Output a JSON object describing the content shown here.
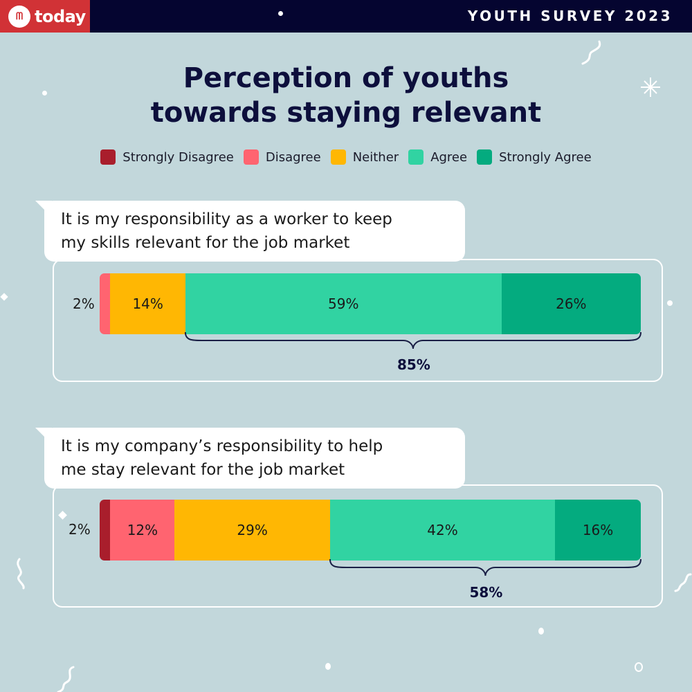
{
  "header": {
    "logo_text": "today",
    "survey_label": "YOUTH SURVEY 2023"
  },
  "chart_data": {
    "type": "bar",
    "orientation": "horizontal-stacked-100",
    "title": "Perception of youths towards staying relevant",
    "title_lines": [
      "Perception of youths",
      "towards staying relevant"
    ],
    "legend": [
      {
        "name": "Strongly Disagree",
        "color": "#a91e2c"
      },
      {
        "name": "Disagree",
        "color": "#ff6470"
      },
      {
        "name": "Neither",
        "color": "#ffb703"
      },
      {
        "name": "Agree",
        "color": "#31d3a2"
      },
      {
        "name": "Strongly Agree",
        "color": "#04ab7f"
      }
    ],
    "legend_placement": "top",
    "categories": [
      "It is my responsibility as a worker to keep my skills relevant for the job market",
      "It is my company’s responsibility to help me stay relevant for the job market"
    ],
    "category_lines": [
      [
        "It is my responsibility as a worker to keep",
        "my skills relevant for the job market"
      ],
      [
        "It is my company’s responsibility to help",
        "me stay relevant for the job market"
      ]
    ],
    "series": [
      {
        "name": "Strongly Disagree",
        "values": [
          0,
          2
        ]
      },
      {
        "name": "Disagree",
        "values": [
          2,
          12
        ]
      },
      {
        "name": "Neither",
        "values": [
          14,
          29
        ]
      },
      {
        "name": "Agree",
        "values": [
          59,
          42
        ]
      },
      {
        "name": "Strongly Agree",
        "values": [
          26,
          16
        ]
      }
    ],
    "data_labels": [
      {
        "outside": "2%",
        "segments": [
          "",
          "",
          "14%",
          "59%",
          "26%"
        ]
      },
      {
        "outside": "2%",
        "segments": [
          "",
          "12%",
          "29%",
          "42%",
          "16%"
        ]
      }
    ],
    "agree_totals": [
      "85%",
      "58%"
    ]
  }
}
